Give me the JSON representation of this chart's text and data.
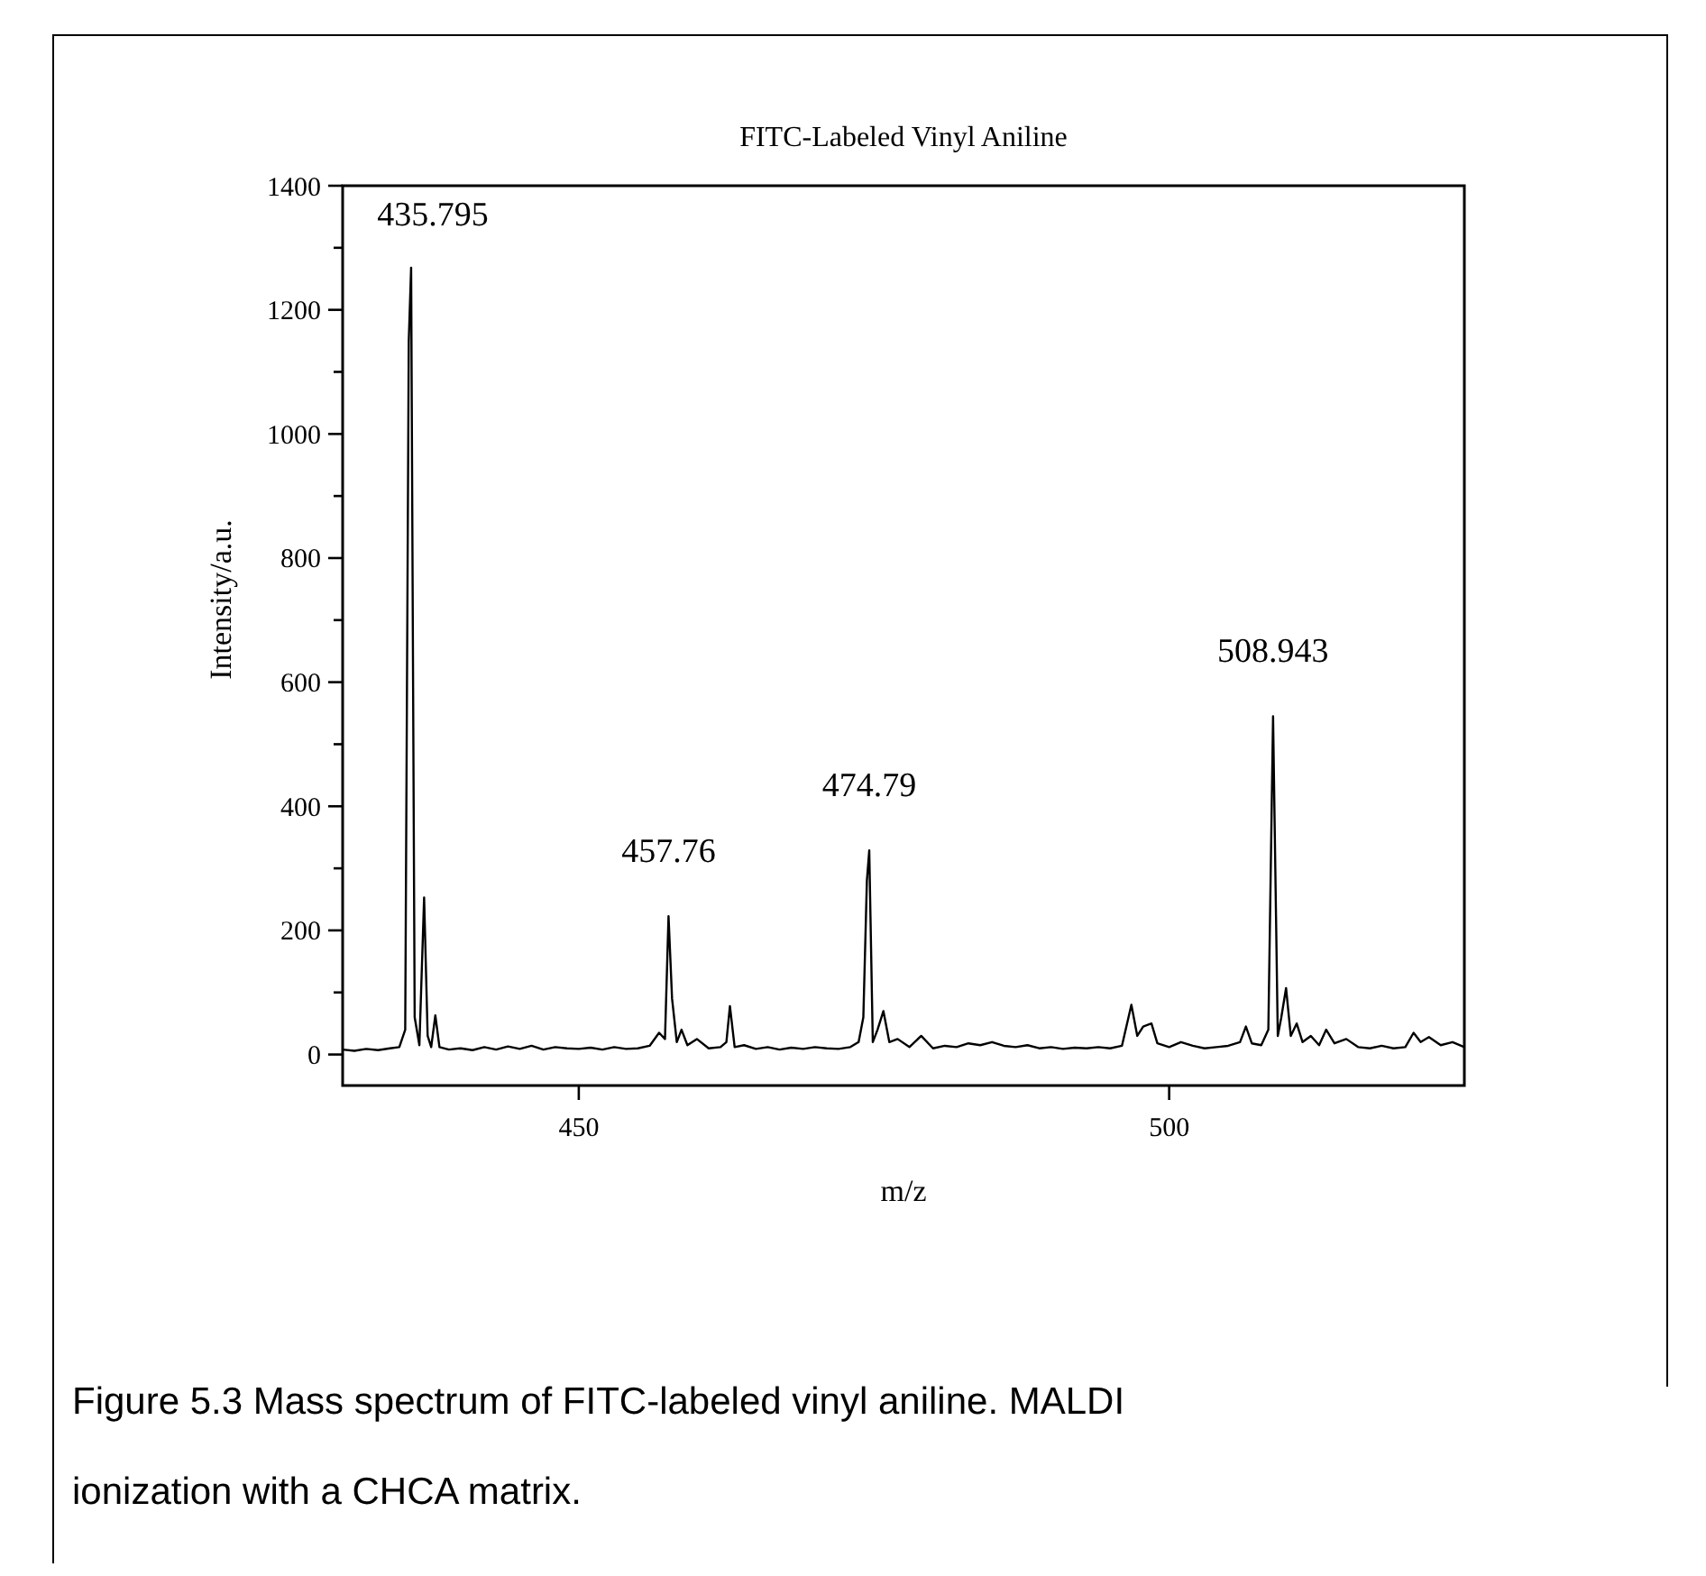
{
  "chart_data": {
    "type": "line",
    "title": "FITC-Labeled Vinyl Aniline",
    "xlabel": "m/z",
    "ylabel": "Intensity/a.u.",
    "xlim": [
      430,
      525
    ],
    "xticks": [
      450,
      500
    ],
    "ylim": [
      -50,
      1400
    ],
    "yticks": [
      0,
      {
        "value": 100,
        "label": null
      },
      200,
      {
        "value": 300,
        "label": null
      },
      400,
      {
        "value": 500,
        "label": null
      },
      600,
      {
        "value": 700,
        "label": null
      },
      800,
      {
        "value": 900,
        "label": null
      },
      1000,
      {
        "value": 1100,
        "label": null
      },
      1200,
      {
        "value": 1300,
        "label": null
      },
      1400
    ],
    "grid": false,
    "marker": "none",
    "line_style": "solid",
    "annotations": [
      {
        "text": "435.795",
        "x": 435.8,
        "y": 1268
      },
      {
        "text": "457.76",
        "x": 457.6,
        "y": 223
      },
      {
        "text": "474.79",
        "x": 474.6,
        "y": 329
      },
      {
        "text": "508.943",
        "x": 508.8,
        "y": 545
      },
      "Figure 5.3 Mass spectrum of FITC-labeled vinyl aniline. MALDI ionization with a CHCA matrix."
    ],
    "series": [
      {
        "color": "#000000",
        "x": [
          430,
          431,
          432,
          433,
          434,
          434.8,
          435.3,
          435.6,
          435.8,
          436.1,
          436.5,
          436.9,
          437.2,
          437.5,
          437.85,
          438.2,
          439,
          440,
          441,
          442,
          443,
          444,
          445,
          446,
          447,
          448,
          449,
          450,
          451,
          452,
          453,
          454,
          455,
          456,
          456.8,
          457.3,
          457.6,
          457.9,
          458.3,
          458.7,
          459.2,
          460,
          461,
          462,
          462.5,
          462.8,
          463.2,
          464,
          465,
          466,
          467,
          468,
          469,
          470,
          471,
          472,
          473,
          473.7,
          474.1,
          474.4,
          474.6,
          474.9,
          475.3,
          475.8,
          476.3,
          477,
          478,
          479,
          480,
          481,
          482,
          483,
          484,
          485,
          486,
          487,
          488,
          489,
          490,
          491,
          492,
          493,
          494,
          495,
          496,
          496.8,
          497.3,
          497.8,
          498.5,
          499,
          500,
          501,
          502,
          503,
          504,
          505,
          506,
          506.5,
          507,
          507.8,
          508.4,
          508.8,
          509.2,
          509.5,
          509.9,
          510.3,
          510.8,
          511.3,
          512,
          512.7,
          513.3,
          514,
          515,
          516,
          517,
          518,
          519,
          520,
          520.7,
          521.3,
          522,
          523,
          524,
          525
        ],
        "values": [
          8,
          6,
          9,
          7,
          10,
          12,
          40,
          1150,
          1268,
          60,
          15,
          253,
          30,
          12,
          63,
          12,
          8,
          10,
          7,
          12,
          8,
          13,
          9,
          14,
          8,
          12,
          10,
          9,
          11,
          8,
          12,
          9,
          10,
          14,
          35,
          25,
          223,
          90,
          20,
          40,
          15,
          25,
          10,
          12,
          20,
          78,
          12,
          15,
          9,
          12,
          8,
          11,
          9,
          12,
          10,
          9,
          12,
          20,
          60,
          280,
          329,
          20,
          40,
          70,
          20,
          25,
          12,
          30,
          10,
          14,
          12,
          18,
          15,
          20,
          14,
          12,
          15,
          10,
          12,
          9,
          11,
          10,
          12,
          10,
          14,
          80,
          30,
          45,
          50,
          18,
          12,
          20,
          14,
          10,
          12,
          14,
          20,
          45,
          18,
          15,
          40,
          545,
          30,
          60,
          107,
          30,
          50,
          20,
          30,
          15,
          40,
          18,
          25,
          12,
          10,
          14,
          10,
          12,
          35,
          20,
          28,
          15,
          20,
          12
        ]
      }
    ]
  }
}
